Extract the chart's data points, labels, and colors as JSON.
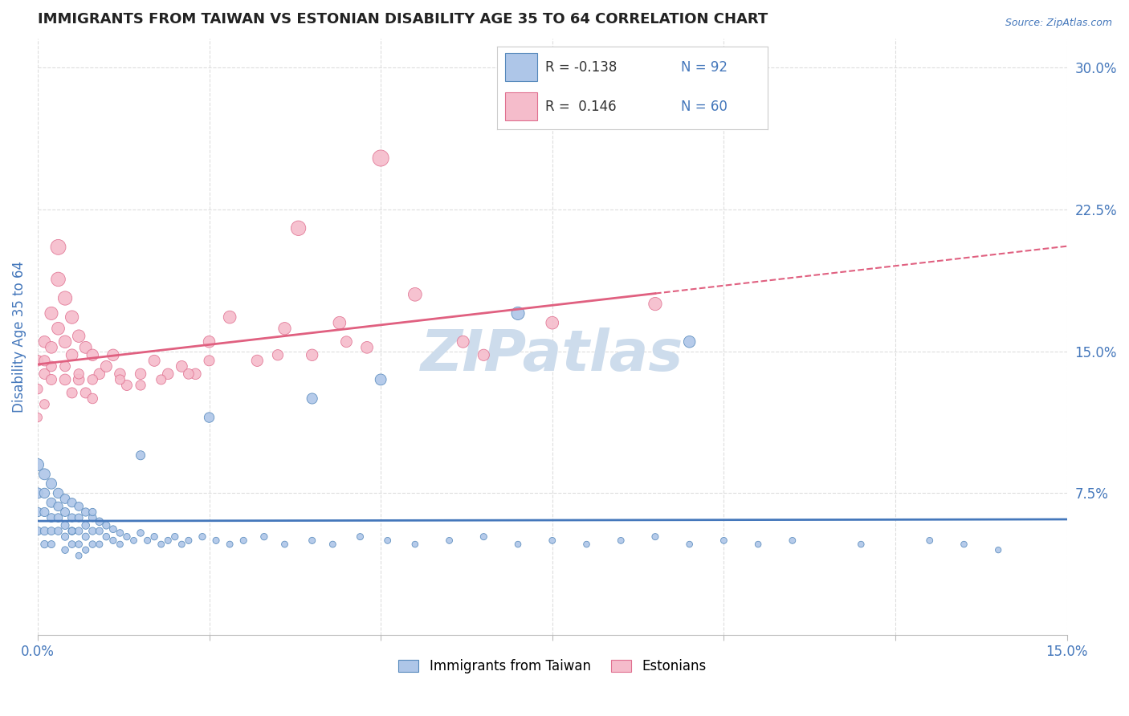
{
  "title": "IMMIGRANTS FROM TAIWAN VS ESTONIAN DISABILITY AGE 35 TO 64 CORRELATION CHART",
  "source_text": "Source: ZipAtlas.com",
  "ylabel": "Disability Age 35 to 64",
  "xlim": [
    0.0,
    0.15
  ],
  "ylim": [
    0.0,
    0.315
  ],
  "xticks": [
    0.0,
    0.025,
    0.05,
    0.075,
    0.1,
    0.125,
    0.15
  ],
  "xticklabels": [
    "0.0%",
    "",
    "",
    "",
    "",
    "",
    "15.0%"
  ],
  "yticks_right": [
    0.075,
    0.15,
    0.225,
    0.3
  ],
  "yticklabels_right": [
    "7.5%",
    "15.0%",
    "22.5%",
    "30.0%"
  ],
  "taiwan_color": "#aec6e8",
  "estonia_color": "#f5bccb",
  "taiwan_edge_color": "#5588bb",
  "estonia_edge_color": "#e07090",
  "taiwan_line_color": "#4477bb",
  "estonia_line_color": "#e06080",
  "watermark_color": "#cddcec",
  "background_color": "#ffffff",
  "grid_color": "#dddddd",
  "title_color": "#222222",
  "tick_color": "#4477bb",
  "taiwan_r": -0.138,
  "taiwan_n": 92,
  "estonia_r": 0.146,
  "estonia_n": 60,
  "taiwan_scatter": {
    "x": [
      0.0,
      0.0,
      0.0,
      0.0,
      0.001,
      0.001,
      0.001,
      0.001,
      0.001,
      0.002,
      0.002,
      0.002,
      0.002,
      0.002,
      0.003,
      0.003,
      0.003,
      0.003,
      0.004,
      0.004,
      0.004,
      0.004,
      0.004,
      0.005,
      0.005,
      0.005,
      0.005,
      0.006,
      0.006,
      0.006,
      0.006,
      0.006,
      0.007,
      0.007,
      0.007,
      0.007,
      0.008,
      0.008,
      0.008,
      0.009,
      0.009,
      0.009,
      0.01,
      0.01,
      0.011,
      0.011,
      0.012,
      0.012,
      0.013,
      0.014,
      0.015,
      0.016,
      0.017,
      0.018,
      0.019,
      0.02,
      0.021,
      0.022,
      0.024,
      0.026,
      0.028,
      0.03,
      0.033,
      0.036,
      0.04,
      0.043,
      0.047,
      0.051,
      0.055,
      0.06,
      0.065,
      0.07,
      0.075,
      0.08,
      0.085,
      0.09,
      0.095,
      0.1,
      0.105,
      0.11,
      0.12,
      0.13,
      0.135,
      0.14,
      0.095,
      0.07,
      0.05,
      0.04,
      0.025,
      0.015,
      0.008,
      0.005
    ],
    "y": [
      0.09,
      0.075,
      0.065,
      0.055,
      0.085,
      0.075,
      0.065,
      0.055,
      0.048,
      0.08,
      0.07,
      0.062,
      0.055,
      0.048,
      0.075,
      0.068,
      0.062,
      0.055,
      0.072,
      0.065,
      0.058,
      0.052,
      0.045,
      0.07,
      0.062,
      0.055,
      0.048,
      0.068,
      0.062,
      0.055,
      0.048,
      0.042,
      0.065,
      0.058,
      0.052,
      0.045,
      0.062,
      0.055,
      0.048,
      0.06,
      0.055,
      0.048,
      0.058,
      0.052,
      0.056,
      0.05,
      0.054,
      0.048,
      0.052,
      0.05,
      0.054,
      0.05,
      0.052,
      0.048,
      0.05,
      0.052,
      0.048,
      0.05,
      0.052,
      0.05,
      0.048,
      0.05,
      0.052,
      0.048,
      0.05,
      0.048,
      0.052,
      0.05,
      0.048,
      0.05,
      0.052,
      0.048,
      0.05,
      0.048,
      0.05,
      0.052,
      0.048,
      0.05,
      0.048,
      0.05,
      0.048,
      0.05,
      0.048,
      0.045,
      0.155,
      0.17,
      0.135,
      0.125,
      0.115,
      0.095,
      0.065,
      0.055
    ],
    "sizes": [
      120,
      90,
      70,
      55,
      100,
      80,
      65,
      55,
      45,
      90,
      75,
      60,
      50,
      42,
      80,
      68,
      58,
      48,
      72,
      62,
      52,
      44,
      38,
      65,
      55,
      48,
      40,
      60,
      52,
      45,
      38,
      32,
      55,
      48,
      42,
      35,
      50,
      44,
      38,
      48,
      42,
      35,
      44,
      38,
      40,
      35,
      38,
      32,
      36,
      32,
      38,
      34,
      36,
      32,
      34,
      36,
      32,
      34,
      36,
      34,
      32,
      34,
      36,
      32,
      34,
      32,
      34,
      32,
      30,
      32,
      34,
      30,
      32,
      30,
      32,
      34,
      30,
      32,
      30,
      32,
      30,
      32,
      30,
      28,
      110,
      135,
      100,
      90,
      80,
      65,
      45,
      40
    ]
  },
  "estonia_scatter": {
    "x": [
      0.0,
      0.0,
      0.0,
      0.001,
      0.001,
      0.001,
      0.002,
      0.002,
      0.002,
      0.003,
      0.003,
      0.003,
      0.004,
      0.004,
      0.004,
      0.005,
      0.005,
      0.005,
      0.006,
      0.006,
      0.007,
      0.007,
      0.008,
      0.008,
      0.009,
      0.01,
      0.011,
      0.012,
      0.013,
      0.015,
      0.017,
      0.019,
      0.021,
      0.023,
      0.025,
      0.028,
      0.032,
      0.036,
      0.04,
      0.044,
      0.048,
      0.055,
      0.062,
      0.075,
      0.09,
      0.038,
      0.05,
      0.065,
      0.018,
      0.022,
      0.012,
      0.006,
      0.004,
      0.002,
      0.001,
      0.008,
      0.015,
      0.025,
      0.035,
      0.045
    ],
    "y": [
      0.145,
      0.13,
      0.115,
      0.155,
      0.138,
      0.122,
      0.17,
      0.152,
      0.135,
      0.205,
      0.188,
      0.162,
      0.178,
      0.155,
      0.135,
      0.168,
      0.148,
      0.128,
      0.158,
      0.135,
      0.152,
      0.128,
      0.148,
      0.125,
      0.138,
      0.142,
      0.148,
      0.138,
      0.132,
      0.138,
      0.145,
      0.138,
      0.142,
      0.138,
      0.155,
      0.168,
      0.145,
      0.162,
      0.148,
      0.165,
      0.152,
      0.18,
      0.155,
      0.165,
      0.175,
      0.215,
      0.252,
      0.148,
      0.135,
      0.138,
      0.135,
      0.138,
      0.142,
      0.142,
      0.145,
      0.135,
      0.132,
      0.145,
      0.148,
      0.155
    ],
    "sizes": [
      95,
      80,
      65,
      110,
      90,
      72,
      135,
      112,
      88,
      185,
      160,
      128,
      155,
      125,
      98,
      138,
      112,
      88,
      125,
      98,
      115,
      88,
      108,
      82,
      95,
      102,
      108,
      95,
      88,
      95,
      102,
      95,
      100,
      95,
      110,
      128,
      105,
      122,
      108,
      128,
      112,
      145,
      115,
      128,
      138,
      175,
      210,
      105,
      75,
      85,
      75,
      80,
      85,
      85,
      90,
      80,
      78,
      88,
      92,
      100
    ]
  }
}
